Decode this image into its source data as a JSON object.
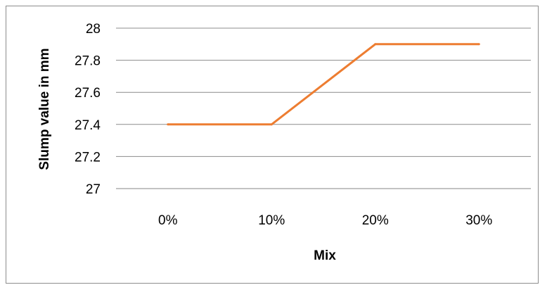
{
  "chart_data": {
    "type": "line",
    "title": "",
    "xlabel": "Mix",
    "ylabel": "Slump value in mm",
    "categories": [
      "0%",
      "10%",
      "20%",
      "30%"
    ],
    "series": [
      {
        "values": [
          27.4,
          27.4,
          27.9,
          27.9
        ],
        "color": "#ed7d31"
      }
    ],
    "ylim": [
      27,
      28
    ],
    "yticks": [
      "27",
      "27.2",
      "27.4",
      "27.6",
      "27.8",
      "28"
    ],
    "grid": true,
    "legend": "none"
  }
}
